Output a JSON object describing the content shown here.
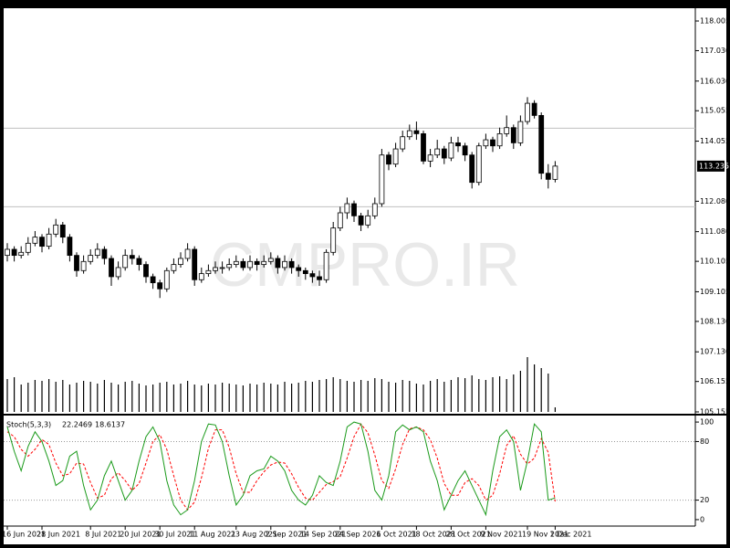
{
  "chart_data": {
    "type": "candlestick",
    "watermark": "CMPRO.IR",
    "categories": [
      "16 Jun 2021",
      null,
      null,
      null,
      null,
      "28 Jun 2021",
      null,
      null,
      null,
      null,
      null,
      null,
      "8 Jul 2021",
      null,
      null,
      null,
      null,
      "20 Jul 2021",
      null,
      null,
      null,
      null,
      "30 Jul 2021",
      null,
      null,
      null,
      null,
      "11 Aug 2021",
      null,
      null,
      null,
      null,
      null,
      "23 Aug 2021",
      null,
      null,
      null,
      null,
      "2 Sep 2021",
      null,
      null,
      null,
      null,
      "14 Sep 2021",
      null,
      null,
      null,
      null,
      "24 Sep 2021",
      null,
      null,
      null,
      null,
      null,
      "6 Oct 2021",
      null,
      null,
      null,
      null,
      "18 Oct 2021",
      null,
      null,
      null,
      null,
      "28 Oct 2021",
      null,
      null,
      null,
      null,
      "9 Nov 2021",
      null,
      null,
      null,
      null,
      null,
      "19 Nov 2021",
      null,
      null,
      null,
      "1 Dec 2021"
    ],
    "candles": [
      [
        110.3,
        110.7,
        110.1,
        110.5
      ],
      [
        110.5,
        110.6,
        110.1,
        110.3
      ],
      [
        110.3,
        110.6,
        110.2,
        110.4
      ],
      [
        110.4,
        110.9,
        110.3,
        110.7
      ],
      [
        110.7,
        111.1,
        110.6,
        110.9
      ],
      [
        110.9,
        111.0,
        110.4,
        110.6
      ],
      [
        110.6,
        111.2,
        110.5,
        111.0
      ],
      [
        111.0,
        111.5,
        110.9,
        111.3
      ],
      [
        111.3,
        111.4,
        110.7,
        110.9
      ],
      [
        110.9,
        111.0,
        110.1,
        110.3
      ],
      [
        110.3,
        110.4,
        109.6,
        109.8
      ],
      [
        109.8,
        110.3,
        109.7,
        110.1
      ],
      [
        110.1,
        110.5,
        110.0,
        110.3
      ],
      [
        110.3,
        110.7,
        110.2,
        110.5
      ],
      [
        110.5,
        110.6,
        110.0,
        110.2
      ],
      [
        110.2,
        110.3,
        109.3,
        109.6
      ],
      [
        109.6,
        110.1,
        109.5,
        109.9
      ],
      [
        109.9,
        110.5,
        109.8,
        110.3
      ],
      [
        110.3,
        110.5,
        110.0,
        110.2
      ],
      [
        110.2,
        110.3,
        109.8,
        110.0
      ],
      [
        110.0,
        110.1,
        109.4,
        109.6
      ],
      [
        109.6,
        109.7,
        109.2,
        109.4
      ],
      [
        109.4,
        109.5,
        108.9,
        109.2
      ],
      [
        109.2,
        109.9,
        109.1,
        109.8
      ],
      [
        109.8,
        110.2,
        109.7,
        110.0
      ],
      [
        110.0,
        110.4,
        109.9,
        110.2
      ],
      [
        110.2,
        110.7,
        110.1,
        110.5
      ],
      [
        110.5,
        110.6,
        109.3,
        109.5
      ],
      [
        109.5,
        109.9,
        109.4,
        109.7
      ],
      [
        109.7,
        110.0,
        109.6,
        109.8
      ],
      [
        109.8,
        110.1,
        109.7,
        109.9
      ],
      [
        109.9,
        110.1,
        109.7,
        109.9
      ],
      [
        109.9,
        110.2,
        109.8,
        110.0
      ],
      [
        110.0,
        110.3,
        109.9,
        110.1
      ],
      [
        110.1,
        110.2,
        109.8,
        109.9
      ],
      [
        109.9,
        110.3,
        109.8,
        110.1
      ],
      [
        110.1,
        110.2,
        109.8,
        110.0
      ],
      [
        110.0,
        110.3,
        109.9,
        110.1
      ],
      [
        110.1,
        110.4,
        110.0,
        110.2
      ],
      [
        110.2,
        110.3,
        109.7,
        109.9
      ],
      [
        109.9,
        110.3,
        109.8,
        110.1
      ],
      [
        110.1,
        110.2,
        109.7,
        109.9
      ],
      [
        109.9,
        110.0,
        109.6,
        109.8
      ],
      [
        109.8,
        109.9,
        109.5,
        109.7
      ],
      [
        109.7,
        109.8,
        109.4,
        109.6
      ],
      [
        109.6,
        109.8,
        109.3,
        109.5
      ],
      [
        109.5,
        110.5,
        109.4,
        110.4
      ],
      [
        110.4,
        111.4,
        110.3,
        111.2
      ],
      [
        111.2,
        111.9,
        111.1,
        111.7
      ],
      [
        111.7,
        112.2,
        111.5,
        112.0
      ],
      [
        112.0,
        112.1,
        111.4,
        111.6
      ],
      [
        111.6,
        111.7,
        111.1,
        111.3
      ],
      [
        111.3,
        111.8,
        111.2,
        111.6
      ],
      [
        111.6,
        112.2,
        111.5,
        112.0
      ],
      [
        112.0,
        113.8,
        111.9,
        113.6
      ],
      [
        113.6,
        113.7,
        113.1,
        113.3
      ],
      [
        113.3,
        114.0,
        113.2,
        113.8
      ],
      [
        113.8,
        114.4,
        113.7,
        114.2
      ],
      [
        114.2,
        114.6,
        114.1,
        114.4
      ],
      [
        114.4,
        114.7,
        114.1,
        114.3
      ],
      [
        114.3,
        114.4,
        113.3,
        113.4
      ],
      [
        113.4,
        113.8,
        113.2,
        113.6
      ],
      [
        113.6,
        114.1,
        113.5,
        113.8
      ],
      [
        113.8,
        113.9,
        113.3,
        113.5
      ],
      [
        113.5,
        114.2,
        113.4,
        114.0
      ],
      [
        114.0,
        114.2,
        113.7,
        113.9
      ],
      [
        113.9,
        114.0,
        113.4,
        113.6
      ],
      [
        113.6,
        113.7,
        112.5,
        112.7
      ],
      [
        112.7,
        114.0,
        112.6,
        113.9
      ],
      [
        113.9,
        114.3,
        113.8,
        114.1
      ],
      [
        114.1,
        114.2,
        113.7,
        113.9
      ],
      [
        113.9,
        114.5,
        113.8,
        114.3
      ],
      [
        114.3,
        114.9,
        114.2,
        114.5
      ],
      [
        114.5,
        114.6,
        113.8,
        114.0
      ],
      [
        114.0,
        114.9,
        113.9,
        114.7
      ],
      [
        114.7,
        115.5,
        114.6,
        115.3
      ],
      [
        115.3,
        115.4,
        114.8,
        114.9
      ],
      [
        114.9,
        115.0,
        112.8,
        113.0
      ],
      [
        113.0,
        113.3,
        112.5,
        112.8
      ],
      [
        112.8,
        113.4,
        112.7,
        113.235
      ]
    ],
    "up_color": "#ffffff",
    "down_color": "#000000",
    "ylim": [
      105.095,
      118.395
    ],
    "yticks": [
      118.005,
      {
        "value": 117.03,
        "label": "117.030"
      },
      {
        "value": 116.03,
        "label": "116.030"
      },
      115.055,
      114.055,
      {
        "value": 112.08,
        "label": "112.080"
      },
      {
        "value": 111.08,
        "label": "111.080"
      },
      110.105,
      109.105,
      {
        "value": 108.13,
        "label": "108.130"
      },
      {
        "value": 107.13,
        "label": "107.130"
      },
      106.155,
      105.155
    ],
    "hlines": [
      114.48,
      111.9
    ],
    "volumes": [
      36,
      38,
      30,
      32,
      35,
      34,
      36,
      33,
      35,
      30,
      32,
      34,
      33,
      31,
      35,
      32,
      30,
      33,
      34,
      31,
      29,
      30,
      32,
      33,
      30,
      31,
      34,
      30,
      29,
      31,
      30,
      32,
      31,
      30,
      29,
      31,
      30,
      32,
      31,
      30,
      33,
      31,
      32,
      34,
      33,
      35,
      36,
      38,
      36,
      34,
      33,
      35,
      34,
      37,
      36,
      33,
      32,
      35,
      34,
      31,
      30,
      34,
      36,
      33,
      35,
      38,
      37,
      40,
      36,
      35,
      38,
      39,
      36,
      41,
      45,
      60,
      52,
      48,
      42,
      5
    ],
    "indicator": {
      "name": "Stoch(5,3,3)",
      "k": [
        95,
        70,
        50,
        75,
        90,
        80,
        60,
        35,
        40,
        65,
        70,
        35,
        10,
        20,
        45,
        60,
        40,
        20,
        30,
        60,
        85,
        95,
        80,
        40,
        15,
        5,
        10,
        40,
        80,
        98,
        97,
        80,
        45,
        15,
        25,
        45,
        50,
        52,
        65,
        60,
        50,
        30,
        20,
        15,
        25,
        45,
        38,
        35,
        60,
        95,
        100,
        98,
        70,
        30,
        20,
        45,
        90,
        97,
        92,
        95,
        90,
        60,
        40,
        10,
        25,
        40,
        50,
        35,
        20,
        5,
        50,
        85,
        92,
        80,
        30,
        60,
        98,
        90,
        20,
        22.2469
      ],
      "d": [
        90,
        85,
        72,
        65,
        72,
        82,
        77,
        58,
        45,
        47,
        58,
        57,
        38,
        22,
        25,
        42,
        48,
        40,
        30,
        37,
        58,
        80,
        87,
        72,
        45,
        20,
        10,
        18,
        43,
        73,
        92,
        92,
        74,
        47,
        28,
        28,
        40,
        49,
        56,
        59,
        58,
        47,
        33,
        22,
        20,
        28,
        36,
        39,
        44,
        63,
        85,
        98,
        89,
        66,
        40,
        32,
        52,
        77,
        93,
        95,
        92,
        82,
        63,
        37,
        25,
        25,
        38,
        42,
        35,
        20,
        25,
        47,
        76,
        86,
        67,
        57,
        63,
        83,
        69,
        18.6137
      ],
      "k_color": "#1a9a1a",
      "d_color": "#ff0000",
      "ylim": [
        -6.6,
        105.7
      ],
      "yticks": [
        100,
        80,
        20,
        0
      ],
      "levels": [
        20,
        80
      ]
    }
  }
}
